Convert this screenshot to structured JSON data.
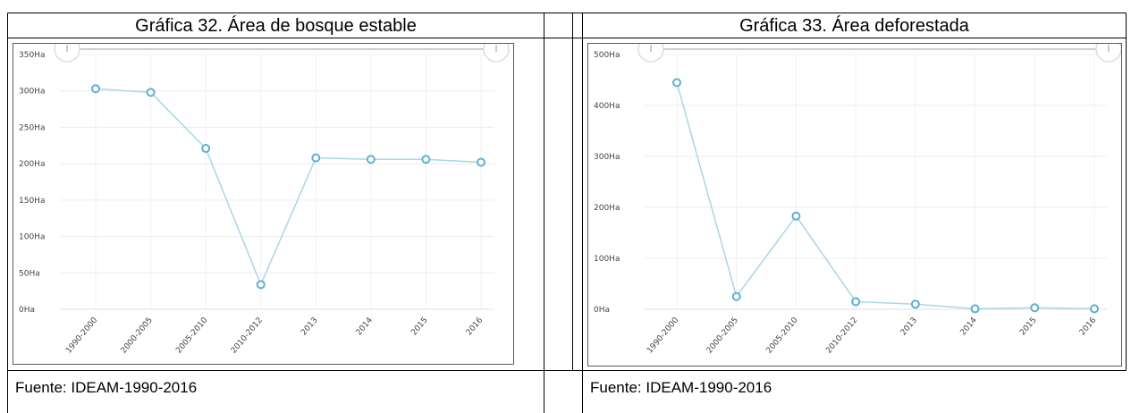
{
  "left": {
    "title": "Gráfica 32. Área de bosque estable",
    "source": "Fuente: IDEAM-1990-2016"
  },
  "right": {
    "title": "Gráfica 33. Área deforestada",
    "source": "Fuente: IDEAM-1990-2016"
  },
  "chart_data": [
    {
      "type": "line",
      "title": "Gráfica 32. Área de bosque estable",
      "categories": [
        "1990-2000",
        "2000-2005",
        "2005-2010",
        "2010-2012",
        "2013",
        "2014",
        "2015",
        "2016"
      ],
      "series": [
        {
          "values": [
            303,
            298,
            221,
            34,
            208,
            206,
            206,
            202
          ]
        }
      ],
      "ylim": [
        0,
        350
      ],
      "yticks": [
        "0Ha",
        "50Ha",
        "100Ha",
        "150Ha",
        "200Ha",
        "250Ha",
        "300Ha",
        "350Ha"
      ],
      "ytick_values": [
        0,
        50,
        100,
        150,
        200,
        250,
        300,
        350
      ],
      "grid": true,
      "line_color": "#a9d6e6",
      "marker_color": "#5fb0cf"
    },
    {
      "type": "line",
      "title": "Gráfica 33. Área deforestada",
      "categories": [
        "1990-2000",
        "2000-2005",
        "2005-2010",
        "2010-2012",
        "2013",
        "2014",
        "2015",
        "2016"
      ],
      "series": [
        {
          "values": [
            445,
            25,
            183,
            15,
            10,
            1,
            3,
            1
          ]
        }
      ],
      "ylim": [
        0,
        500
      ],
      "yticks": [
        "0Ha",
        "100Ha",
        "200Ha",
        "300Ha",
        "400Ha",
        "500Ha"
      ],
      "ytick_values": [
        0,
        100,
        200,
        300,
        400,
        500
      ],
      "grid": true,
      "line_color": "#a9d6e6",
      "marker_color": "#5fb0cf"
    }
  ]
}
